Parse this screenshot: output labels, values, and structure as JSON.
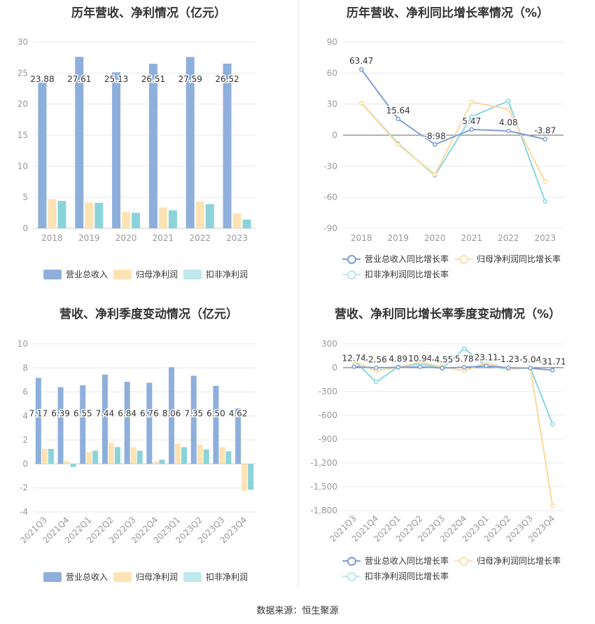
{
  "footer": {
    "source": "数据来源：恒生聚源"
  },
  "colors": {
    "revenue": "#8eafdc",
    "net_profit": "#fde3b4",
    "deducted": "#8ad4d9",
    "revenue_line": "#7f9ed6",
    "net_profit_line": "#fcd99b",
    "deducted_line": "#87d8e0"
  },
  "chart_data": [
    {
      "type": "bar",
      "title": "历年营收、净利情况（亿元）",
      "categories": [
        "2018",
        "2019",
        "2020",
        "2021",
        "2022",
        "2023"
      ],
      "series": [
        {
          "name": "营业总收入",
          "values": [
            23.88,
            27.61,
            25.13,
            26.51,
            27.59,
            26.52
          ],
          "labeled": true
        },
        {
          "name": "归母净利润",
          "values": [
            4.7,
            4.2,
            2.6,
            3.4,
            4.3,
            2.4
          ]
        },
        {
          "name": "扣非净利润",
          "values": [
            4.4,
            4.1,
            2.5,
            2.9,
            3.9,
            1.4
          ]
        }
      ],
      "ylim": [
        0,
        30
      ],
      "yticks": [
        0,
        5,
        10,
        15,
        20,
        25,
        30
      ],
      "ytick_labels": [
        "0",
        "5",
        "10",
        "15",
        "20",
        "25",
        "30"
      ],
      "grid": true,
      "legend": "bottom"
    },
    {
      "type": "line",
      "title": "历年营收、净利同比增长率情况（%）",
      "categories": [
        "2018",
        "2019",
        "2020",
        "2021",
        "2022",
        "2023"
      ],
      "series": [
        {
          "name": "营业总收入同比增长率",
          "values": [
            63.47,
            15.64,
            -8.98,
            5.47,
            4.08,
            -3.87
          ],
          "labeled": true
        },
        {
          "name": "归母净利润同比增长率",
          "values": [
            31,
            -9,
            -38,
            32,
            25,
            -45
          ]
        },
        {
          "name": "扣非净利润同比增长率",
          "values": [
            31,
            -8,
            -39,
            18,
            33,
            -64
          ]
        }
      ],
      "ylim": [
        -90,
        90
      ],
      "yticks": [
        -90,
        -60,
        -30,
        0,
        30,
        60,
        90
      ],
      "ytick_labels": [
        "-90",
        "-60",
        "-30",
        "0",
        "30",
        "60",
        "90"
      ],
      "grid": true,
      "legend": "bottom"
    },
    {
      "type": "bar",
      "title": "营收、净利季度变动情况（亿元）",
      "categories": [
        "2021Q3",
        "2021Q4",
        "2022Q1",
        "2022Q2",
        "2022Q3",
        "2022Q4",
        "2023Q1",
        "2023Q2",
        "2023Q3",
        "2023Q4"
      ],
      "series": [
        {
          "name": "营业总收入",
          "values": [
            7.17,
            6.39,
            6.55,
            7.44,
            6.84,
            6.76,
            8.06,
            7.35,
            6.5,
            4.62
          ],
          "labeled": true
        },
        {
          "name": "归母净利润",
          "values": [
            1.25,
            0.25,
            1.0,
            1.75,
            1.4,
            0.2,
            1.7,
            1.6,
            1.4,
            -2.25
          ]
        },
        {
          "name": "扣非净利润",
          "values": [
            1.25,
            -0.25,
            1.1,
            1.4,
            1.1,
            0.35,
            1.4,
            1.2,
            1.05,
            -2.15
          ]
        }
      ],
      "ylim": [
        -4,
        10
      ],
      "yticks": [
        -4,
        -2,
        0,
        2,
        4,
        6,
        8,
        10
      ],
      "ytick_labels": [
        "-4",
        "-2",
        "0",
        "2",
        "4",
        "6",
        "8",
        "10"
      ],
      "grid": true,
      "legend": "bottom"
    },
    {
      "type": "line",
      "title": "营收、净利同比增长率季度变动情况（%）",
      "categories": [
        "2021Q3",
        "2021Q4",
        "2022Q1",
        "2022Q2",
        "2022Q3",
        "2022Q4",
        "2023Q1",
        "2023Q2",
        "2023Q3",
        "2023Q4"
      ],
      "series": [
        {
          "name": "营业总收入同比增长率",
          "values": [
            12.74,
            -2.56,
            4.89,
            10.94,
            -4.55,
            5.78,
            23.11,
            -1.23,
            -5.04,
            -31.71
          ],
          "labeled": true
        },
        {
          "name": "归母净利润同比增长率",
          "values": [
            80,
            -40,
            5,
            70,
            10,
            -40,
            60,
            -15,
            -5,
            -1740
          ]
        },
        {
          "name": "扣非净利润同比增长率",
          "values": [
            90,
            -180,
            10,
            50,
            -10,
            240,
            20,
            -15,
            -5,
            -710
          ]
        }
      ],
      "ylim": [
        -1800,
        300
      ],
      "yticks": [
        -1800,
        -1500,
        -1200,
        -900,
        -600,
        -300,
        0,
        300
      ],
      "ytick_labels": [
        "-1,800",
        "-1,500",
        "-1,200",
        "-900",
        "-600",
        "-300",
        "0",
        "300"
      ],
      "grid": true,
      "legend": "bottom"
    }
  ]
}
